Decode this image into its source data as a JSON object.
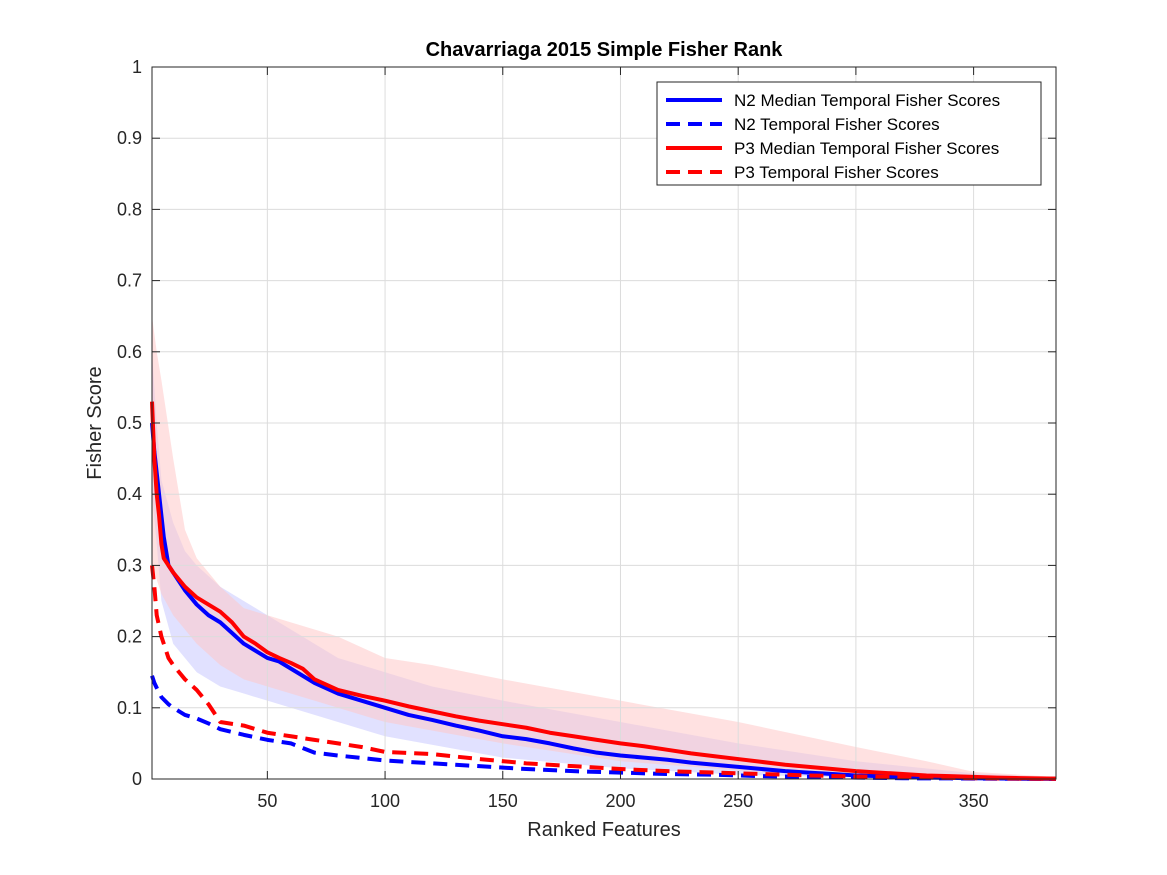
{
  "chart_data": {
    "type": "line",
    "title": "Chavarriaga 2015 Simple Fisher Rank",
    "xlabel": "Ranked Features",
    "ylabel": "Fisher Score",
    "xlim": [
      1,
      385
    ],
    "ylim": [
      0,
      1
    ],
    "xticks": [
      50,
      100,
      150,
      200,
      250,
      300,
      350
    ],
    "yticks": [
      0,
      0.1,
      0.2,
      0.3,
      0.4,
      0.5,
      0.6,
      0.7,
      0.8,
      0.9,
      1
    ],
    "ytick_labels": [
      "0",
      "0.1",
      "0.2",
      "0.3",
      "0.4",
      "0.5",
      "0.6",
      "0.7",
      "0.8",
      "0.9",
      "1"
    ],
    "grid": true,
    "legend_position": "top-right",
    "bands": [
      {
        "color": "#c8c8ff",
        "upper": [
          [
            1,
            0.6
          ],
          [
            3,
            0.5
          ],
          [
            5,
            0.42
          ],
          [
            10,
            0.36
          ],
          [
            15,
            0.32
          ],
          [
            20,
            0.3
          ],
          [
            30,
            0.27
          ],
          [
            40,
            0.25
          ],
          [
            50,
            0.23
          ],
          [
            60,
            0.21
          ],
          [
            70,
            0.19
          ],
          [
            80,
            0.17
          ],
          [
            100,
            0.15
          ],
          [
            120,
            0.13
          ],
          [
            150,
            0.11
          ],
          [
            200,
            0.08
          ],
          [
            250,
            0.05
          ],
          [
            300,
            0.025
          ],
          [
            350,
            0.008
          ],
          [
            385,
            0.002
          ]
        ],
        "lower": [
          [
            1,
            0.4
          ],
          [
            3,
            0.33
          ],
          [
            5,
            0.25
          ],
          [
            10,
            0.19
          ],
          [
            15,
            0.17
          ],
          [
            20,
            0.15
          ],
          [
            30,
            0.13
          ],
          [
            40,
            0.12
          ],
          [
            50,
            0.11
          ],
          [
            70,
            0.09
          ],
          [
            100,
            0.06
          ],
          [
            150,
            0.03
          ],
          [
            200,
            0.015
          ],
          [
            250,
            0.006
          ],
          [
            300,
            0.002
          ],
          [
            350,
            0.0
          ],
          [
            385,
            0.0
          ]
        ]
      },
      {
        "color": "#ffc8c8",
        "upper": [
          [
            1,
            0.65
          ],
          [
            3,
            0.6
          ],
          [
            5,
            0.56
          ],
          [
            10,
            0.45
          ],
          [
            15,
            0.35
          ],
          [
            20,
            0.31
          ],
          [
            30,
            0.27
          ],
          [
            40,
            0.24
          ],
          [
            50,
            0.23
          ],
          [
            60,
            0.22
          ],
          [
            80,
            0.2
          ],
          [
            100,
            0.17
          ],
          [
            120,
            0.16
          ],
          [
            150,
            0.14
          ],
          [
            200,
            0.11
          ],
          [
            250,
            0.08
          ],
          [
            300,
            0.045
          ],
          [
            330,
            0.025
          ],
          [
            350,
            0.01
          ],
          [
            385,
            0.003
          ]
        ],
        "lower": [
          [
            1,
            0.3
          ],
          [
            3,
            0.28
          ],
          [
            5,
            0.26
          ],
          [
            10,
            0.23
          ],
          [
            15,
            0.21
          ],
          [
            20,
            0.19
          ],
          [
            30,
            0.16
          ],
          [
            40,
            0.14
          ],
          [
            50,
            0.13
          ],
          [
            70,
            0.11
          ],
          [
            100,
            0.08
          ],
          [
            150,
            0.05
          ],
          [
            200,
            0.025
          ],
          [
            250,
            0.012
          ],
          [
            300,
            0.004
          ],
          [
            350,
            0.001
          ],
          [
            385,
            0.0
          ]
        ]
      }
    ],
    "series": [
      {
        "name": "N2 Median Temporal Fisher Scores",
        "color": "#0000ff",
        "dash": "solid",
        "points": [
          [
            1,
            0.5
          ],
          [
            2,
            0.46
          ],
          [
            3,
            0.43
          ],
          [
            4,
            0.4
          ],
          [
            5,
            0.37
          ],
          [
            6,
            0.34
          ],
          [
            7,
            0.32
          ],
          [
            8,
            0.3
          ],
          [
            10,
            0.29
          ],
          [
            12,
            0.28
          ],
          [
            15,
            0.265
          ],
          [
            20,
            0.245
          ],
          [
            25,
            0.23
          ],
          [
            30,
            0.22
          ],
          [
            35,
            0.205
          ],
          [
            40,
            0.19
          ],
          [
            45,
            0.18
          ],
          [
            50,
            0.17
          ],
          [
            55,
            0.165
          ],
          [
            60,
            0.155
          ],
          [
            70,
            0.135
          ],
          [
            80,
            0.12
          ],
          [
            90,
            0.11
          ],
          [
            100,
            0.1
          ],
          [
            110,
            0.09
          ],
          [
            120,
            0.083
          ],
          [
            130,
            0.075
          ],
          [
            140,
            0.068
          ],
          [
            150,
            0.06
          ],
          [
            160,
            0.056
          ],
          [
            170,
            0.05
          ],
          [
            180,
            0.043
          ],
          [
            190,
            0.037
          ],
          [
            200,
            0.033
          ],
          [
            210,
            0.03
          ],
          [
            220,
            0.027
          ],
          [
            230,
            0.023
          ],
          [
            240,
            0.02
          ],
          [
            250,
            0.017
          ],
          [
            260,
            0.014
          ],
          [
            270,
            0.011
          ],
          [
            280,
            0.009
          ],
          [
            290,
            0.007
          ],
          [
            300,
            0.005
          ],
          [
            310,
            0.004
          ],
          [
            320,
            0.003
          ],
          [
            330,
            0.002
          ],
          [
            340,
            0.0015
          ],
          [
            350,
            0.001
          ],
          [
            360,
            0.0007
          ],
          [
            370,
            0.0004
          ],
          [
            385,
            0.0002
          ]
        ]
      },
      {
        "name": "N2 Temporal Fisher Scores",
        "color": "#0000ff",
        "dash": "dashed",
        "points": [
          [
            1,
            0.145
          ],
          [
            2,
            0.135
          ],
          [
            3,
            0.128
          ],
          [
            5,
            0.115
          ],
          [
            8,
            0.105
          ],
          [
            10,
            0.1
          ],
          [
            15,
            0.09
          ],
          [
            20,
            0.085
          ],
          [
            25,
            0.078
          ],
          [
            30,
            0.07
          ],
          [
            40,
            0.062
          ],
          [
            50,
            0.055
          ],
          [
            60,
            0.05
          ],
          [
            70,
            0.037
          ],
          [
            80,
            0.033
          ],
          [
            100,
            0.026
          ],
          [
            120,
            0.022
          ],
          [
            140,
            0.018
          ],
          [
            160,
            0.014
          ],
          [
            180,
            0.011
          ],
          [
            200,
            0.009
          ],
          [
            220,
            0.007
          ],
          [
            240,
            0.006
          ],
          [
            260,
            0.004
          ],
          [
            280,
            0.003
          ],
          [
            300,
            0.002
          ],
          [
            320,
            0.001
          ],
          [
            340,
            0.0008
          ],
          [
            360,
            0.0004
          ],
          [
            385,
            0.0002
          ]
        ]
      },
      {
        "name": "P3 Median Temporal Fisher Scores",
        "color": "#ff0000",
        "dash": "solid",
        "points": [
          [
            1,
            0.53
          ],
          [
            2,
            0.45
          ],
          [
            3,
            0.4
          ],
          [
            4,
            0.37
          ],
          [
            5,
            0.33
          ],
          [
            6,
            0.31
          ],
          [
            8,
            0.3
          ],
          [
            10,
            0.29
          ],
          [
            15,
            0.27
          ],
          [
            20,
            0.255
          ],
          [
            25,
            0.245
          ],
          [
            30,
            0.235
          ],
          [
            35,
            0.22
          ],
          [
            40,
            0.2
          ],
          [
            45,
            0.19
          ],
          [
            50,
            0.178
          ],
          [
            55,
            0.17
          ],
          [
            60,
            0.163
          ],
          [
            65,
            0.155
          ],
          [
            70,
            0.14
          ],
          [
            80,
            0.125
          ],
          [
            90,
            0.117
          ],
          [
            100,
            0.11
          ],
          [
            110,
            0.102
          ],
          [
            120,
            0.095
          ],
          [
            130,
            0.088
          ],
          [
            140,
            0.082
          ],
          [
            150,
            0.077
          ],
          [
            160,
            0.072
          ],
          [
            170,
            0.065
          ],
          [
            180,
            0.06
          ],
          [
            190,
            0.055
          ],
          [
            200,
            0.05
          ],
          [
            210,
            0.046
          ],
          [
            220,
            0.041
          ],
          [
            230,
            0.036
          ],
          [
            240,
            0.032
          ],
          [
            250,
            0.028
          ],
          [
            260,
            0.024
          ],
          [
            270,
            0.02
          ],
          [
            280,
            0.017
          ],
          [
            290,
            0.014
          ],
          [
            300,
            0.011
          ],
          [
            310,
            0.009
          ],
          [
            320,
            0.007
          ],
          [
            330,
            0.005
          ],
          [
            340,
            0.004
          ],
          [
            350,
            0.003
          ],
          [
            360,
            0.002
          ],
          [
            370,
            0.0012
          ],
          [
            385,
            0.0006
          ]
        ]
      },
      {
        "name": "P3 Temporal Fisher Scores",
        "color": "#ff0000",
        "dash": "dashed",
        "points": [
          [
            1,
            0.3
          ],
          [
            2,
            0.27
          ],
          [
            3,
            0.23
          ],
          [
            5,
            0.2
          ],
          [
            8,
            0.17
          ],
          [
            10,
            0.16
          ],
          [
            15,
            0.14
          ],
          [
            20,
            0.125
          ],
          [
            25,
            0.105
          ],
          [
            30,
            0.08
          ],
          [
            40,
            0.075
          ],
          [
            50,
            0.065
          ],
          [
            60,
            0.06
          ],
          [
            70,
            0.055
          ],
          [
            80,
            0.05
          ],
          [
            90,
            0.045
          ],
          [
            100,
            0.038
          ],
          [
            120,
            0.035
          ],
          [
            140,
            0.028
          ],
          [
            160,
            0.022
          ],
          [
            180,
            0.018
          ],
          [
            200,
            0.014
          ],
          [
            220,
            0.011
          ],
          [
            240,
            0.009
          ],
          [
            260,
            0.007
          ],
          [
            280,
            0.005
          ],
          [
            300,
            0.0035
          ],
          [
            320,
            0.0025
          ],
          [
            340,
            0.0015
          ],
          [
            360,
            0.0008
          ],
          [
            385,
            0.0003
          ]
        ]
      }
    ]
  }
}
